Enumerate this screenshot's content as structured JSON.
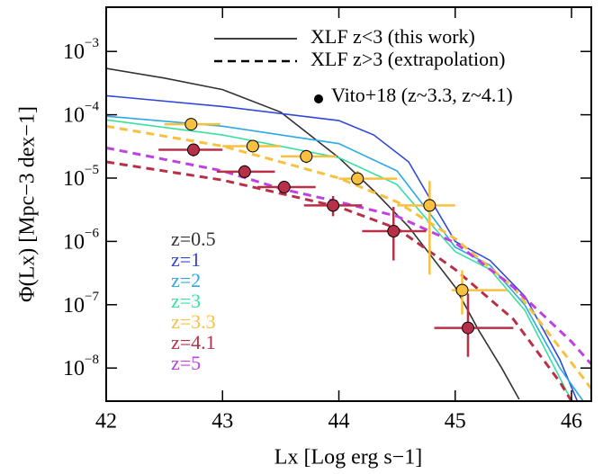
{
  "chart_data": {
    "type": "line",
    "x_label": "Lx [Log erg s−1]",
    "y_label": "Φ(Lx) [Mpc−3 dex−1]",
    "xlim": [
      42,
      46.17
    ],
    "xticks": [
      42,
      43,
      44,
      45,
      46
    ],
    "ylim": [
      3e-09,
      0.005
    ],
    "log_y": true,
    "yticks": [
      {
        "value": 1e-08,
        "label": "10−8"
      },
      {
        "value": 1e-07,
        "label": "10−7"
      },
      {
        "value": 1e-06,
        "label": "10−6"
      },
      {
        "value": 1e-05,
        "label": "10−5"
      },
      {
        "value": 0.0001,
        "label": "10−4"
      },
      {
        "value": 0.001,
        "label": "10−3"
      }
    ],
    "legend_entries": [
      "XLF z<3 (this work)",
      "XLF z>3 (extrapolation)",
      "Vito+18 (z~3.3, z~4.1)"
    ],
    "series": [
      {
        "name": "z=0.5",
        "color": "#333333",
        "dashed": false,
        "x": [
          42,
          42.5,
          43,
          43.5,
          44,
          44.3,
          44.6,
          45,
          45.2,
          45.4,
          45.55
        ],
        "values": [
          0.00054,
          0.00038,
          0.00025,
          0.00011,
          2.1e-05,
          6.3e-06,
          1.7e-06,
          1.9e-07,
          4e-08,
          1e-08,
          3.2e-09
        ]
      },
      {
        "name": "z=1",
        "color": "#3048d8",
        "dashed": false,
        "x": [
          42,
          43,
          44,
          44.3,
          44.6,
          44.8,
          45,
          45.3,
          45.6,
          45.9,
          46.05
        ],
        "values": [
          0.0002,
          0.000135,
          8.1e-05,
          4.8e-05,
          1.8e-05,
          4.2e-06,
          1e-06,
          5e-07,
          1.35e-07,
          1.35e-08,
          3e-09
        ]
      },
      {
        "name": "z=2",
        "color": "#2aa8e8",
        "dashed": false,
        "x": [
          42,
          43,
          44,
          44.5,
          44.8,
          45,
          45.3,
          45.6,
          45.9,
          46.1
        ],
        "values": [
          9.5e-05,
          6.6e-05,
          3.5e-05,
          1.3e-05,
          2.5e-06,
          8.1e-07,
          4.2e-07,
          9.8e-08,
          1e-08,
          3e-09
        ]
      },
      {
        "name": "z=3",
        "color": "#38e0a0",
        "dashed": false,
        "x": [
          42,
          43,
          44,
          44.5,
          44.8,
          45,
          45.3,
          45.6,
          45.9,
          46
        ],
        "values": [
          8.3e-05,
          4.8e-05,
          2.1e-05,
          7.9e-06,
          1.8e-06,
          6.9e-07,
          3.6e-07,
          8.1e-08,
          7e-09,
          3e-09
        ]
      },
      {
        "name": "z=3.3",
        "color": "#f8c040",
        "dashed": true,
        "x": [
          42,
          43,
          43.5,
          44,
          44.5,
          45,
          45.5,
          45.8,
          46.1,
          46.17
        ],
        "values": [
          6.6e-05,
          3.2e-05,
          1.8e-05,
          1e-05,
          4.2e-06,
          1.1e-06,
          1.9e-07,
          3.6e-08,
          7e-09,
          4.7e-09
        ]
      },
      {
        "name": "z=4.1",
        "color": "#b83048",
        "dashed": true,
        "x": [
          42,
          43,
          43.5,
          44,
          44.5,
          45,
          45.5,
          45.9,
          46
        ],
        "values": [
          1.8e-05,
          9.3e-06,
          5.7e-06,
          3.5e-06,
          1.6e-06,
          3.6e-07,
          5.9e-08,
          6e-09,
          3e-09
        ]
      },
      {
        "name": "z=5",
        "color": "#c040e0",
        "dashed": true,
        "x": [
          42,
          43,
          43.5,
          44,
          44.5,
          45,
          45.5,
          46,
          46.17
        ],
        "values": [
          3e-05,
          1.3e-05,
          6.8e-06,
          4.2e-06,
          2.5e-06,
          9.5e-07,
          1.9e-07,
          2.6e-08,
          1.15e-08
        ]
      }
    ],
    "points": [
      {
        "color": "#f8c040",
        "x": [
          42.73,
          43.26,
          43.72,
          44.16,
          44.78,
          45.06
        ],
        "values": [
          7.1e-05,
          3.2e-05,
          2.2e-05,
          9.8e-06,
          3.7e-06,
          1.7e-07
        ],
        "xlow": [
          42.5,
          43.0,
          43.5,
          44.0,
          44.5,
          44.97
        ],
        "xhigh": [
          42.98,
          43.5,
          43.98,
          44.5,
          45.0,
          45.45
        ],
        "ylow": [
          6e-05,
          2.7e-05,
          1.7e-05,
          7.5e-06,
          3e-07,
          7e-08
        ],
        "yhigh": [
          8.5e-05,
          3.8e-05,
          2.8e-05,
          1.3e-05,
          9e-06,
          3.5e-07
        ]
      },
      {
        "color": "#b83048",
        "x": [
          42.75,
          43.19,
          43.53,
          43.95,
          44.47,
          45.11
        ],
        "values": [
          2.8e-05,
          1.26e-05,
          7.2e-06,
          3.7e-06,
          1.45e-06,
          4.3e-08
        ],
        "xlow": [
          42.45,
          42.95,
          43.3,
          43.7,
          44.2,
          44.82
        ],
        "xhigh": [
          43.0,
          43.45,
          43.8,
          44.2,
          44.75,
          45.5
        ],
        "ylow": [
          2.2e-05,
          1e-05,
          5.5e-06,
          2.5e-06,
          5e-07,
          1.5e-08
        ],
        "yhigh": [
          3.5e-05,
          1.6e-05,
          9e-06,
          5.2e-06,
          3.5e-06,
          1.5e-07
        ]
      }
    ]
  }
}
